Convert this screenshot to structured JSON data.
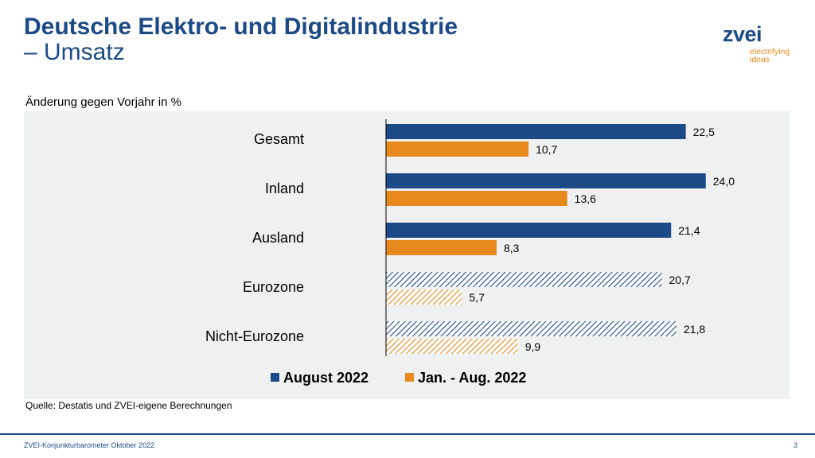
{
  "header": {
    "title_line1": "Deutsche Elektro- und Digitalindustrie",
    "title_line2": "– Umsatz"
  },
  "logo": {
    "word": "zvei",
    "tagline_line1": "electrifying",
    "tagline_line2": "ideas"
  },
  "colors": {
    "august": "#1c4a86",
    "janaug": "#e8891d",
    "title": "#1c4a86",
    "panel": "#eef1f0"
  },
  "chart_data": {
    "type": "bar",
    "orientation": "horizontal",
    "title": "",
    "subtitle": "Änderung gegen Vorjahr in %",
    "categories": [
      "Gesamt",
      "Inland",
      "Ausland",
      "Eurozone",
      "Nicht-Eurozone"
    ],
    "hatched_categories": [
      "Eurozone",
      "Nicht-Eurozone"
    ],
    "series": [
      {
        "name": "August 2022",
        "values": [
          22.5,
          24.0,
          21.4,
          20.7,
          21.8
        ],
        "labels": [
          "22,5",
          "24,0",
          "21,4",
          "20,7",
          "21,8"
        ]
      },
      {
        "name": "Jan. - Aug. 2022",
        "values": [
          10.7,
          13.6,
          8.3,
          5.7,
          9.9
        ],
        "labels": [
          "10,7",
          "13,6",
          "8,3",
          "5,7",
          "9,9"
        ]
      }
    ],
    "xlim": [
      0,
      25
    ],
    "grid": false,
    "legend_position": "bottom"
  },
  "source": "Quelle: Destatis und ZVEI-eigene Berechnungen",
  "footer": {
    "text": "ZVEI-Konjunkturbarometer Oktober 2022",
    "page": "3"
  }
}
